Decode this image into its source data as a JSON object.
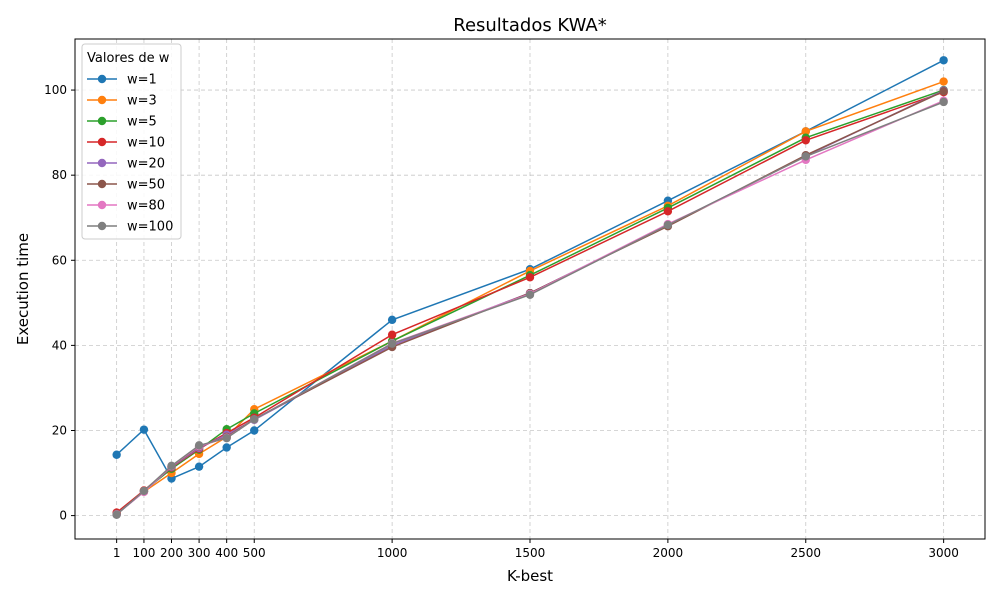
{
  "chart_data": {
    "type": "line",
    "title": "Resultados KWA*",
    "xlabel": "K-best",
    "ylabel": "Execution time",
    "x": [
      1,
      100,
      200,
      300,
      400,
      500,
      1000,
      1500,
      2000,
      2500,
      3000
    ],
    "xticks": [
      1,
      100,
      200,
      300,
      400,
      500,
      1000,
      1500,
      2000,
      2500,
      3000
    ],
    "xtick_labels": [
      "1",
      "100",
      "200",
      "300",
      "400",
      "500",
      "1000",
      "1500",
      "2000",
      "2500",
      "3000"
    ],
    "yticks": [
      0,
      20,
      40,
      60,
      80,
      100
    ],
    "xlim": [
      -150,
      3150
    ],
    "ylim": [
      -5.5,
      112
    ],
    "grid": true,
    "legend": {
      "title": "Valores de w",
      "position": "upper left"
    },
    "series": [
      {
        "name": "w=1",
        "color": "#1f77b4",
        "values": [
          14.3,
          20.2,
          8.7,
          11.5,
          16.0,
          20.0,
          46.0,
          57.9,
          74.0,
          90.3,
          107.0
        ]
      },
      {
        "name": "w=3",
        "color": "#ff7f0e",
        "values": [
          0.5,
          5.6,
          10.0,
          14.5,
          18.5,
          25.0,
          41.0,
          57.5,
          72.8,
          90.3,
          102.0
        ]
      },
      {
        "name": "w=5",
        "color": "#2ca02c",
        "values": [
          0.4,
          5.8,
          11.0,
          15.5,
          20.3,
          24.0,
          41.0,
          56.5,
          72.3,
          88.8,
          100.0
        ]
      },
      {
        "name": "w=10",
        "color": "#d62728",
        "values": [
          0.7,
          5.9,
          11.3,
          15.7,
          19.4,
          23.0,
          42.5,
          56.0,
          71.5,
          88.2,
          99.5
        ]
      },
      {
        "name": "w=20",
        "color": "#9467bd",
        "values": [
          0.3,
          5.6,
          11.4,
          15.9,
          19.0,
          22.5,
          40.0,
          52.3,
          68.2,
          84.5,
          99.9
        ]
      },
      {
        "name": "w=50",
        "color": "#8c564b",
        "values": [
          0.4,
          5.7,
          11.5,
          16.2,
          18.5,
          22.7,
          39.6,
          52.3,
          68.0,
          84.7,
          99.7
        ]
      },
      {
        "name": "w=80",
        "color": "#e377c2",
        "values": [
          0.3,
          5.6,
          11.6,
          16.3,
          18.3,
          22.6,
          40.5,
          52.1,
          68.5,
          83.6,
          97.5
        ]
      },
      {
        "name": "w=100",
        "color": "#7f7f7f",
        "values": [
          0.2,
          5.8,
          11.7,
          16.5,
          18.2,
          22.6,
          40.4,
          51.9,
          68.3,
          84.4,
          97.2
        ]
      }
    ]
  }
}
